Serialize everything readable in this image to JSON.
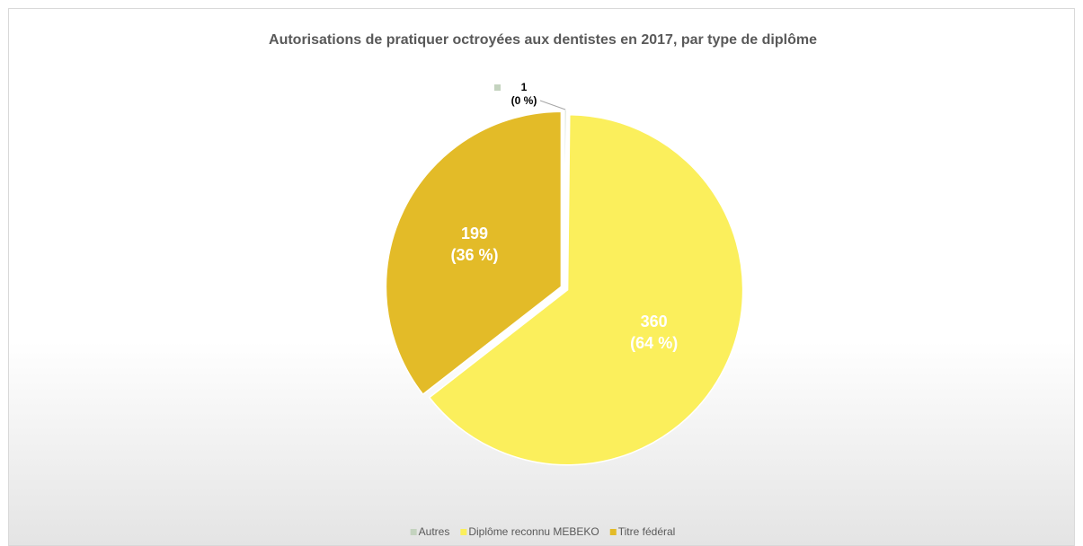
{
  "chart_data": {
    "type": "pie",
    "title": "Autorisations de pratiquer octroyées aux dentistes en 2017, par type de diplôme",
    "categories": [
      "Autres",
      "Diplôme reconnu MEBEKO",
      "Titre fédéral"
    ],
    "values": [
      1,
      360,
      199
    ],
    "percent_labels": [
      "(0 %)",
      "(64 %)",
      "(36 %)"
    ],
    "colors": [
      "#c4d3bf",
      "#fbef5c",
      "#e3bb28"
    ],
    "legend": "bottom"
  }
}
